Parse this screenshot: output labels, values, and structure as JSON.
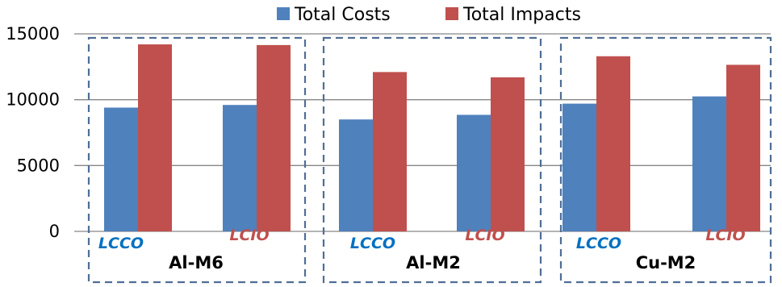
{
  "chart_data": {
    "type": "bar",
    "title": "",
    "xlabel": "",
    "ylabel": "",
    "ylim": [
      0,
      15000
    ],
    "yticks": [
      0,
      5000,
      10000,
      15000
    ],
    "ytick_labels": [
      "0",
      "5000",
      "10000",
      "15000"
    ],
    "grid": true,
    "legend_position": "top-center",
    "series": [
      {
        "name": "Total Costs",
        "color": "#4f81bd",
        "values": [
          9400,
          9600,
          8500,
          8850,
          9700,
          10250
        ]
      },
      {
        "name": "Total Impacts",
        "color": "#c0504d",
        "values": [
          14200,
          14150,
          12100,
          11700,
          13300,
          12650
        ]
      }
    ],
    "categories": [
      "LCCO",
      "LCIO",
      "LCCO",
      "LCIO",
      "LCCO",
      "LCIO"
    ],
    "groups": [
      {
        "label": "Al-M6",
        "sub_labels": [
          "LCCO",
          "LCIO"
        ]
      },
      {
        "label": "Al-M2",
        "sub_labels": [
          "LCCO",
          "LCIO"
        ]
      },
      {
        "label": "Cu-M2",
        "sub_labels": [
          "LCCO",
          "LCIO"
        ]
      }
    ],
    "sub_label_colors": {
      "LCCO": "#0070c0",
      "LCIO": "#c0504d"
    }
  }
}
